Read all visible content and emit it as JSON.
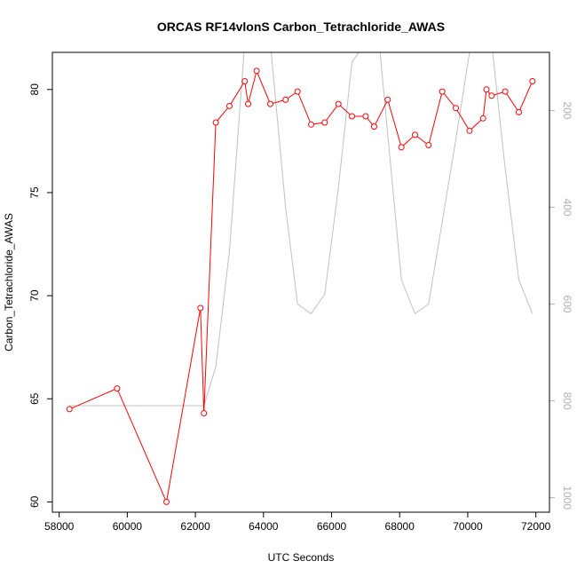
{
  "chart_data": {
    "type": "line",
    "title": "ORCAS RF14vlonS Carbon_Tetrachloride_AWAS",
    "xlabel": "UTC Seconds",
    "ylabel": "Carbon_Tetrachloride_AWAS",
    "xlim": [
      57800,
      72400
    ],
    "ylim": [
      59.5,
      81.8
    ],
    "x_ticks": [
      58000,
      60000,
      62000,
      64000,
      66000,
      68000,
      70000,
      72000
    ],
    "y_ticks": [
      60,
      65,
      70,
      75,
      80
    ],
    "right_axis": {
      "reversed": true,
      "lim": [
        1030,
        80
      ],
      "ticks": [
        200,
        400,
        600,
        800,
        1000
      ],
      "color": "#b0b0b0"
    },
    "series": [
      {
        "name": "",
        "color": "#ff0000",
        "marker": "open-circle",
        "x": [
          58300,
          59700,
          61150,
          62150,
          62250,
          62600,
          63000,
          63450,
          63550,
          63800,
          64200,
          64650,
          65000,
          65400,
          65800,
          66200,
          66600,
          67000,
          67250,
          67650,
          68050,
          68450,
          68850,
          69250,
          69650,
          70050,
          70450,
          70550,
          70700,
          71100,
          71500,
          71900
        ],
        "y": [
          64.5,
          65.5,
          60.0,
          69.4,
          64.3,
          78.4,
          79.2,
          80.4,
          79.3,
          80.9,
          79.3,
          79.5,
          79.9,
          78.3,
          78.4,
          79.3,
          78.7,
          78.7,
          78.2,
          79.5,
          77.2,
          77.8,
          77.3,
          79.9,
          79.1,
          78.0,
          78.6,
          80.0,
          79.7,
          79.9,
          78.9,
          80.4
        ]
      },
      {
        "name": "",
        "color": "#c0c0c0",
        "axis": "right",
        "x": [
          58300,
          59700,
          61150,
          62250,
          62600,
          63000,
          63450,
          63800,
          64200,
          64650,
          65000,
          65400,
          65800,
          66200,
          66600,
          67000,
          67400,
          67650,
          68050,
          68450,
          68850,
          69250,
          69650,
          70050,
          70450,
          70700,
          71100,
          71500,
          71900
        ],
        "y": [
          810,
          810,
          810,
          810,
          730,
          490,
          60,
          0,
          60,
          400,
          600,
          620,
          580,
          360,
          100,
          60,
          60,
          250,
          550,
          620,
          600,
          430,
          260,
          80,
          40,
          60,
          320,
          550,
          620
        ]
      }
    ]
  }
}
